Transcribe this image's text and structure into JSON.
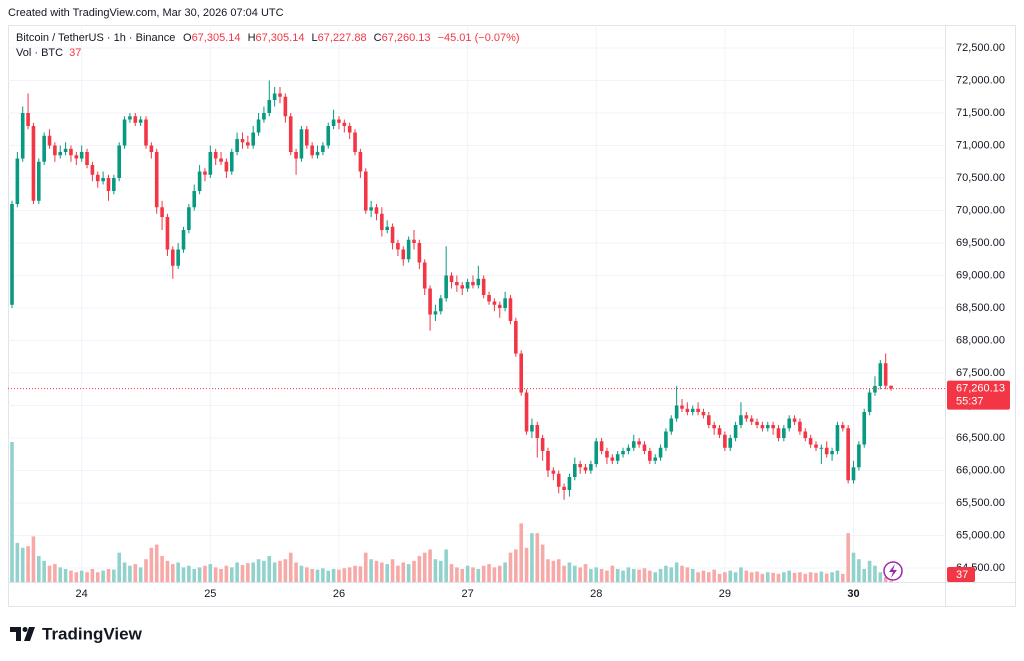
{
  "chart_data": {
    "type": "candlestick",
    "watermark": "Created with TradingView.com, Mar 30, 2026 07:04 UTC",
    "title": "Bitcoin / TetherUS · 1h · Binance",
    "legend": {
      "o_key": "O",
      "o": "67,305.14",
      "h_key": "H",
      "h": "67,305.14",
      "l_key": "L",
      "l": "67,227.88",
      "c_key": "C",
      "c": "67,260.13",
      "change": "−45.01 (−0.07%)",
      "vol_key": "Vol · BTC",
      "vol": "37"
    },
    "last_price_label": "67,260.13",
    "countdown": "55:37",
    "last_volume_label": "37",
    "branding": "TradingView",
    "up_color": "#089981",
    "down_color": "#f23645",
    "volume_up_color": "#92d2cc",
    "volume_down_color": "#f7a9a7",
    "grid": true,
    "ylim": [
      64285,
      72854
    ],
    "yticks": [
      {
        "value": 64500,
        "label": "64,500.00"
      },
      {
        "value": 65000,
        "label": "65,000.00"
      },
      {
        "value": 65500,
        "label": "65,500.00"
      },
      {
        "value": 66000,
        "label": "66,000.00"
      },
      {
        "value": 66500,
        "label": "66,500.00"
      },
      {
        "value": 67000,
        "label": "67,000.00"
      },
      {
        "value": 67500,
        "label": "67,500.00"
      },
      {
        "value": 68000,
        "label": "68,000.00"
      },
      {
        "value": 68500,
        "label": "68,500.00"
      },
      {
        "value": 69000,
        "label": "69,000.00"
      },
      {
        "value": 69500,
        "label": "69,500.00"
      },
      {
        "value": 70000,
        "label": "70,000.00"
      },
      {
        "value": 70500,
        "label": "70,500.00"
      },
      {
        "value": 71000,
        "label": "71,000.00"
      },
      {
        "value": 71500,
        "label": "71,500.00"
      },
      {
        "value": 72000,
        "label": "72,000.00"
      },
      {
        "value": 72500,
        "label": "72,500.00"
      }
    ],
    "categories": [
      null,
      null,
      null,
      null,
      null,
      null,
      null,
      null,
      null,
      null,
      null,
      null,
      null,
      "24",
      null,
      null,
      null,
      null,
      null,
      null,
      null,
      null,
      null,
      null,
      null,
      null,
      null,
      null,
      null,
      null,
      null,
      null,
      null,
      null,
      null,
      null,
      null,
      "25",
      null,
      null,
      null,
      null,
      null,
      null,
      null,
      null,
      null,
      null,
      null,
      null,
      null,
      null,
      null,
      null,
      null,
      null,
      null,
      null,
      null,
      null,
      null,
      "26",
      null,
      null,
      null,
      null,
      null,
      null,
      null,
      null,
      null,
      null,
      null,
      null,
      null,
      null,
      null,
      null,
      null,
      null,
      null,
      null,
      null,
      null,
      null,
      "27",
      null,
      null,
      null,
      null,
      null,
      null,
      null,
      null,
      null,
      null,
      null,
      null,
      null,
      null,
      null,
      null,
      null,
      null,
      null,
      null,
      null,
      null,
      null,
      "28",
      null,
      null,
      null,
      null,
      null,
      null,
      null,
      null,
      null,
      null,
      null,
      null,
      null,
      null,
      null,
      null,
      null,
      null,
      null,
      null,
      null,
      null,
      null,
      "29",
      null,
      null,
      null,
      null,
      null,
      null,
      null,
      null,
      null,
      null,
      null,
      null,
      null,
      null,
      null,
      null,
      null,
      null,
      null,
      null,
      null,
      null,
      null,
      "30",
      null,
      null,
      null,
      null,
      null,
      null,
      null
    ],
    "open": [
      68550,
      70100,
      70800,
      71500,
      71300,
      70150,
      70750,
      71150,
      71000,
      70850,
      70900,
      70950,
      70850,
      70800,
      70900,
      70700,
      70550,
      70450,
      70500,
      70300,
      70500,
      71000,
      71400,
      71450,
      71350,
      71400,
      71000,
      70900,
      70050,
      69900,
      69400,
      69150,
      69400,
      69700,
      70050,
      70300,
      70600,
      70550,
      70900,
      70800,
      70750,
      70600,
      70900,
      71100,
      71050,
      71000,
      71200,
      71400,
      71500,
      71700,
      71800,
      71750,
      71450,
      70900,
      70800,
      71250,
      71000,
      70850,
      70900,
      71000,
      71300,
      71400,
      71350,
      71300,
      71200,
      70900,
      70600,
      70000,
      70050,
      69950,
      69700,
      69750,
      69500,
      69400,
      69250,
      69550,
      69500,
      69200,
      68800,
      68400,
      68450,
      68650,
      69000,
      68900,
      68850,
      68800,
      68900,
      68850,
      68950,
      68700,
      68600,
      68550,
      68500,
      68650,
      68300,
      67800,
      67200,
      66600,
      66700,
      66500,
      66300,
      66000,
      65950,
      65750,
      65700,
      65900,
      66100,
      66050,
      66000,
      66100,
      66450,
      66300,
      66200,
      66150,
      66250,
      66300,
      66350,
      66450,
      66400,
      66300,
      66150,
      66200,
      66350,
      66600,
      66800,
      67000,
      66950,
      66900,
      66950,
      66900,
      66850,
      66700,
      66650,
      66550,
      66350,
      66500,
      66700,
      66850,
      66800,
      66750,
      66700,
      66650,
      66700,
      66650,
      66500,
      66650,
      66800,
      66750,
      66600,
      66500,
      66400,
      66350,
      66350,
      66250,
      66300,
      66700,
      66650,
      65850,
      66050,
      66400,
      66900,
      67200,
      67300,
      67650,
      67305.14
    ],
    "high": [
      70150,
      70900,
      71600,
      71800,
      71350,
      70800,
      71200,
      71250,
      71050,
      71000,
      71050,
      71000,
      70900,
      71000,
      70950,
      70750,
      70600,
      70600,
      70550,
      70550,
      71050,
      71450,
      71500,
      71500,
      71450,
      71450,
      71050,
      70950,
      70150,
      69950,
      69450,
      69500,
      69750,
      70100,
      70400,
      70700,
      70650,
      71000,
      70950,
      70900,
      70800,
      70950,
      71200,
      71200,
      71150,
      71300,
      71500,
      71600,
      72000,
      71900,
      71900,
      71800,
      71500,
      70950,
      71300,
      71300,
      71050,
      71000,
      71050,
      71350,
      71550,
      71450,
      71400,
      71350,
      71250,
      70950,
      70650,
      70150,
      70100,
      70050,
      69850,
      69800,
      69550,
      69450,
      69600,
      69700,
      69550,
      69250,
      68850,
      68550,
      68700,
      69450,
      69050,
      69000,
      68900,
      68950,
      69000,
      69150,
      69000,
      68750,
      68650,
      68600,
      68750,
      68700,
      68350,
      67850,
      67250,
      66800,
      66750,
      66550,
      66350,
      66050,
      66000,
      65800,
      65950,
      66200,
      66150,
      66100,
      66150,
      66500,
      66500,
      66350,
      66250,
      66300,
      66350,
      66400,
      66550,
      66500,
      66450,
      66350,
      66250,
      66400,
      66650,
      66850,
      67300,
      67100,
      67050,
      67000,
      67050,
      66950,
      66900,
      66750,
      66700,
      66600,
      66550,
      66750,
      67050,
      66900,
      66850,
      66800,
      66750,
      66750,
      66750,
      66700,
      66700,
      66850,
      66850,
      66800,
      66650,
      66550,
      66450,
      66400,
      66450,
      66350,
      66750,
      66750,
      66700,
      66150,
      66450,
      66950,
      67250,
      67450,
      67700,
      67800,
      67305.14
    ],
    "low": [
      68500,
      70050,
      70750,
      71250,
      70100,
      70100,
      70700,
      70950,
      70750,
      70800,
      70850,
      70750,
      70700,
      70750,
      70650,
      70450,
      70350,
      70400,
      70150,
      70250,
      70450,
      70950,
      71350,
      71300,
      71300,
      70950,
      70800,
      69950,
      69700,
      69300,
      68950,
      69100,
      69350,
      69650,
      70000,
      70250,
      70450,
      70500,
      70700,
      70700,
      70500,
      70550,
      70850,
      70950,
      70950,
      70950,
      71150,
      71350,
      71450,
      71600,
      71650,
      71350,
      70850,
      70550,
      70750,
      70950,
      70800,
      70800,
      70850,
      70950,
      71250,
      71250,
      71200,
      71100,
      70850,
      70500,
      69950,
      69900,
      69850,
      69600,
      69650,
      69400,
      69300,
      69150,
      69200,
      69400,
      69100,
      68700,
      68150,
      68300,
      68400,
      68600,
      68800,
      68750,
      68700,
      68750,
      68800,
      68800,
      68650,
      68550,
      68450,
      68350,
      68450,
      68250,
      67750,
      67150,
      66550,
      66500,
      66200,
      66150,
      65900,
      65850,
      65650,
      65550,
      65600,
      65850,
      65950,
      65950,
      65950,
      66050,
      66250,
      66100,
      66100,
      66100,
      66200,
      66250,
      66300,
      66350,
      66250,
      66100,
      66100,
      66150,
      66300,
      66550,
      66750,
      66900,
      66850,
      66850,
      66850,
      66800,
      66650,
      66550,
      66500,
      66300,
      66300,
      66450,
      66650,
      66750,
      66700,
      66650,
      66600,
      66600,
      66550,
      66450,
      66450,
      66600,
      66700,
      66550,
      66450,
      66350,
      66300,
      66100,
      66200,
      66150,
      66250,
      66600,
      65800,
      65800,
      66000,
      66350,
      66850,
      67150,
      67250,
      67250,
      67227.88
    ],
    "close": [
      70100,
      70800,
      71500,
      71300,
      70150,
      70750,
      71150,
      71000,
      70850,
      70900,
      70950,
      70850,
      70800,
      70900,
      70700,
      70550,
      70450,
      70500,
      70300,
      70500,
      71000,
      71400,
      71450,
      71350,
      71400,
      71000,
      70900,
      70050,
      69900,
      69400,
      69150,
      69400,
      69700,
      70050,
      70300,
      70600,
      70550,
      70900,
      70800,
      70750,
      70600,
      70900,
      71100,
      71050,
      71000,
      71200,
      71400,
      71500,
      71700,
      71800,
      71750,
      71450,
      70900,
      70800,
      71250,
      71000,
      70850,
      70900,
      71000,
      71300,
      71400,
      71350,
      71300,
      71200,
      70900,
      70600,
      70000,
      70050,
      69950,
      69700,
      69750,
      69500,
      69400,
      69250,
      69550,
      69500,
      69200,
      68800,
      68400,
      68450,
      68650,
      69000,
      68900,
      68850,
      68800,
      68900,
      68850,
      68950,
      68700,
      68600,
      68550,
      68500,
      68650,
      68300,
      67800,
      67200,
      66600,
      66700,
      66500,
      66300,
      66000,
      65950,
      65750,
      65700,
      65900,
      66100,
      66050,
      66000,
      66100,
      66450,
      66300,
      66200,
      66150,
      66250,
      66300,
      66350,
      66450,
      66400,
      66300,
      66150,
      66200,
      66350,
      66600,
      66800,
      67000,
      66950,
      66900,
      66950,
      66900,
      66850,
      66700,
      66650,
      66550,
      66350,
      66500,
      66700,
      66850,
      66800,
      66750,
      66700,
      66650,
      66700,
      66650,
      66500,
      66650,
      66800,
      66750,
      66600,
      66500,
      66400,
      66350,
      66350,
      66250,
      66300,
      66700,
      66650,
      65850,
      66050,
      66400,
      66900,
      67200,
      67300,
      67650,
      67305.14,
      67260.13
    ],
    "volume": [
      4300,
      1200,
      1050,
      1100,
      1400,
      800,
      650,
      500,
      550,
      450,
      400,
      350,
      300,
      350,
      300,
      400,
      300,
      350,
      400,
      380,
      900,
      600,
      500,
      550,
      450,
      700,
      1050,
      1150,
      800,
      650,
      550,
      600,
      450,
      500,
      400,
      450,
      500,
      550,
      450,
      400,
      500,
      450,
      600,
      520,
      580,
      600,
      700,
      650,
      800,
      600,
      650,
      700,
      900,
      600,
      500,
      450,
      400,
      380,
      420,
      350,
      400,
      380,
      420,
      450,
      500,
      480,
      900,
      700,
      650,
      600,
      550,
      700,
      500,
      600,
      550,
      650,
      800,
      900,
      1000,
      700,
      650,
      1000,
      550,
      450,
      400,
      500,
      450,
      400,
      500,
      550,
      450,
      500,
      600,
      900,
      1000,
      1800,
      1050,
      1500,
      1500,
      1150,
      700,
      650,
      700,
      500,
      600,
      500,
      450,
      550,
      400,
      450,
      400,
      350,
      500,
      400,
      350,
      450,
      400,
      380,
      420,
      350,
      300,
      400,
      500,
      450,
      600,
      500,
      450,
      400,
      300,
      350,
      300,
      380,
      250,
      300,
      350,
      300,
      450,
      350,
      300,
      320,
      250,
      300,
      280,
      250,
      300,
      350,
      280,
      300,
      250,
      300,
      280,
      320,
      260,
      300,
      350,
      250,
      1500,
      900,
      700,
      400,
      650,
      500,
      300,
      150,
      37
    ]
  }
}
